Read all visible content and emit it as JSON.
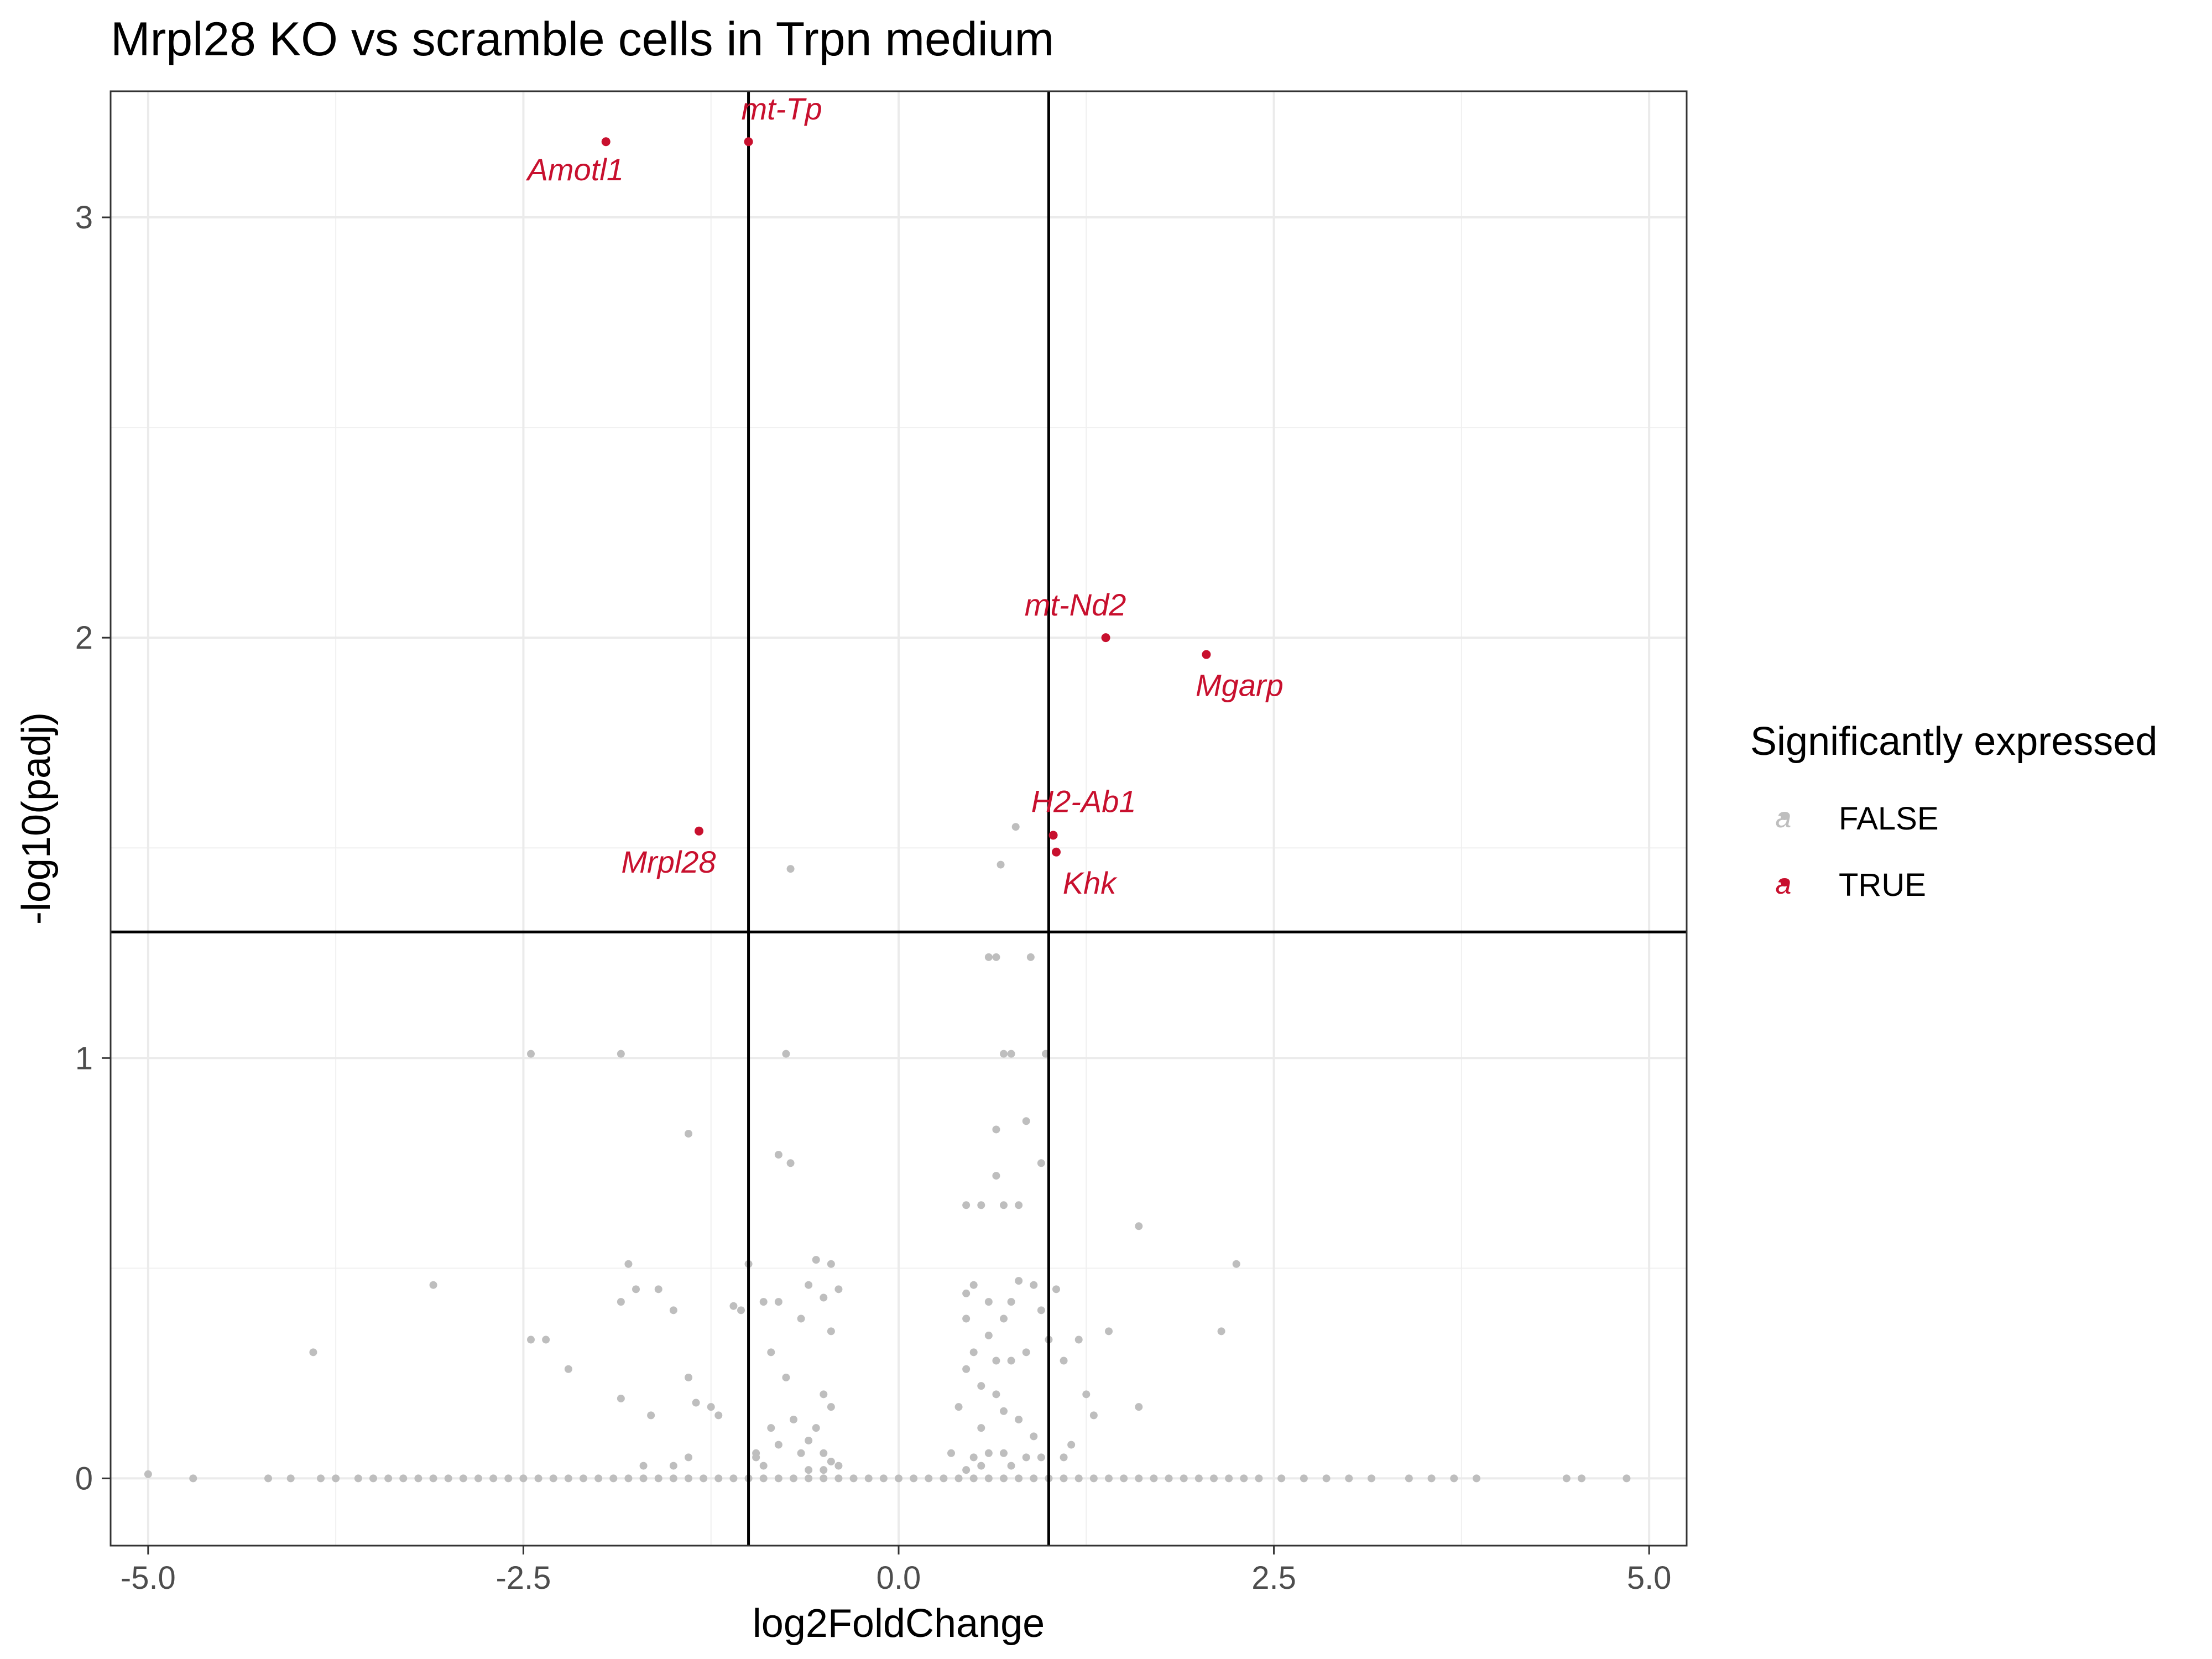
{
  "chart_data": {
    "type": "scatter",
    "title": "Mrpl28 KO vs scramble cells in Trpn medium",
    "xlabel": "log2FoldChange",
    "ylabel": "-log10(padj)",
    "xlim": [
      -5.25,
      5.25
    ],
    "ylim": [
      -0.16,
      3.3
    ],
    "x_ticks": [
      -5.0,
      -2.5,
      0.0,
      2.5,
      5.0
    ],
    "x_tick_labels": [
      "-5.0",
      "-2.5",
      "0.0",
      "2.5",
      "5.0"
    ],
    "y_ticks": [
      0,
      1,
      2,
      3
    ],
    "y_tick_labels": [
      "0",
      "1",
      "2",
      "3"
    ],
    "grid": true,
    "reference_lines": {
      "vertical": [
        -1,
        1
      ],
      "horizontal": [
        1.3
      ]
    },
    "legend": {
      "title": "Significantly expressed",
      "position": "right",
      "entries": [
        {
          "label": "FALSE",
          "color": "#bebebe"
        },
        {
          "label": "TRUE",
          "color": "#c8102e"
        }
      ]
    },
    "colors": {
      "not_significant": "#bebebe",
      "significant": "#c8102e",
      "ref_line": "#000000"
    },
    "series": [
      {
        "name": "FALSE",
        "points": [
          [
            -5.0,
            0.01
          ],
          [
            -4.7,
            0.0
          ],
          [
            -4.2,
            0.0
          ],
          [
            -4.05,
            0.0
          ],
          [
            -3.85,
            0.0
          ],
          [
            -3.75,
            0.0
          ],
          [
            -3.6,
            0.0
          ],
          [
            -3.5,
            0.0
          ],
          [
            -3.4,
            0.0
          ],
          [
            -3.3,
            0.0
          ],
          [
            -3.2,
            0.0
          ],
          [
            -3.1,
            0.0
          ],
          [
            -3.0,
            0.0
          ],
          [
            -2.9,
            0.0
          ],
          [
            -2.8,
            0.0
          ],
          [
            -2.7,
            0.0
          ],
          [
            -2.6,
            0.0
          ],
          [
            -2.5,
            0.0
          ],
          [
            -2.4,
            0.0
          ],
          [
            -2.3,
            0.0
          ],
          [
            -2.2,
            0.0
          ],
          [
            -2.1,
            0.0
          ],
          [
            -2.0,
            0.0
          ],
          [
            -1.9,
            0.0
          ],
          [
            -1.8,
            0.0
          ],
          [
            -1.7,
            0.0
          ],
          [
            -1.6,
            0.0
          ],
          [
            -1.5,
            0.0
          ],
          [
            -1.4,
            0.0
          ],
          [
            -1.3,
            0.0
          ],
          [
            -1.2,
            0.0
          ],
          [
            -1.1,
            0.0
          ],
          [
            -1.0,
            0.0
          ],
          [
            -0.9,
            0.0
          ],
          [
            -0.8,
            0.0
          ],
          [
            -0.7,
            0.0
          ],
          [
            -0.6,
            0.0
          ],
          [
            -0.5,
            0.0
          ],
          [
            -0.4,
            0.0
          ],
          [
            -0.3,
            0.0
          ],
          [
            -0.2,
            0.0
          ],
          [
            -0.1,
            0.0
          ],
          [
            0.0,
            0.0
          ],
          [
            0.1,
            0.0
          ],
          [
            0.2,
            0.0
          ],
          [
            0.3,
            0.0
          ],
          [
            0.4,
            0.0
          ],
          [
            0.5,
            0.0
          ],
          [
            0.6,
            0.0
          ],
          [
            0.7,
            0.0
          ],
          [
            0.8,
            0.0
          ],
          [
            0.9,
            0.0
          ],
          [
            1.0,
            0.0
          ],
          [
            1.1,
            0.0
          ],
          [
            1.2,
            0.0
          ],
          [
            1.3,
            0.0
          ],
          [
            1.4,
            0.0
          ],
          [
            1.5,
            0.0
          ],
          [
            1.6,
            0.0
          ],
          [
            1.7,
            0.0
          ],
          [
            1.8,
            0.0
          ],
          [
            1.9,
            0.0
          ],
          [
            2.0,
            0.0
          ],
          [
            2.1,
            0.0
          ],
          [
            2.2,
            0.0
          ],
          [
            2.3,
            0.0
          ],
          [
            2.4,
            0.0
          ],
          [
            2.55,
            0.0
          ],
          [
            2.7,
            0.0
          ],
          [
            2.85,
            0.0
          ],
          [
            3.0,
            0.0
          ],
          [
            3.15,
            0.0
          ],
          [
            3.4,
            0.0
          ],
          [
            3.55,
            0.0
          ],
          [
            3.7,
            0.0
          ],
          [
            3.85,
            0.0
          ],
          [
            4.45,
            0.0
          ],
          [
            4.55,
            0.0
          ],
          [
            4.85,
            0.0
          ],
          [
            -3.9,
            0.3
          ],
          [
            -3.1,
            0.46
          ],
          [
            -2.45,
            0.33
          ],
          [
            -2.35,
            0.33
          ],
          [
            -2.2,
            0.26
          ],
          [
            -1.85,
            0.42
          ],
          [
            -1.8,
            0.51
          ],
          [
            -1.75,
            0.45
          ],
          [
            -1.6,
            0.45
          ],
          [
            -1.5,
            0.4
          ],
          [
            -1.4,
            0.24
          ],
          [
            -1.35,
            0.18
          ],
          [
            -1.65,
            0.15
          ],
          [
            -1.85,
            0.19
          ],
          [
            -1.25,
            0.17
          ],
          [
            -1.2,
            0.15
          ],
          [
            -1.1,
            0.41
          ],
          [
            -1.0,
            0.51
          ],
          [
            -1.05,
            0.4
          ],
          [
            -0.95,
            0.06
          ],
          [
            -0.9,
            0.42
          ],
          [
            -0.85,
            0.3
          ],
          [
            -0.8,
            0.42
          ],
          [
            -0.75,
            0.24
          ],
          [
            -0.65,
            0.38
          ],
          [
            -0.6,
            0.46
          ],
          [
            -0.55,
            0.52
          ],
          [
            -0.45,
            0.51
          ],
          [
            -0.5,
            0.43
          ],
          [
            -0.45,
            0.35
          ],
          [
            -0.4,
            0.45
          ],
          [
            -0.5,
            0.2
          ],
          [
            -0.45,
            0.17
          ],
          [
            -0.55,
            0.12
          ],
          [
            -0.7,
            0.14
          ],
          [
            -0.6,
            0.09
          ],
          [
            -0.5,
            0.06
          ],
          [
            -0.45,
            0.04
          ],
          [
            -0.65,
            0.06
          ],
          [
            -0.8,
            0.08
          ],
          [
            -0.85,
            0.12
          ],
          [
            -0.4,
            0.03
          ],
          [
            -0.5,
            0.02
          ],
          [
            -0.6,
            0.02
          ],
          [
            -0.9,
            0.03
          ],
          [
            -0.95,
            0.05
          ],
          [
            -1.5,
            0.03
          ],
          [
            -1.7,
            0.03
          ],
          [
            -1.4,
            0.05
          ],
          [
            -2.45,
            1.01
          ],
          [
            -1.85,
            1.01
          ],
          [
            -0.75,
            1.01
          ],
          [
            -1.4,
            0.82
          ],
          [
            -0.8,
            0.77
          ],
          [
            -0.72,
            0.75
          ],
          [
            -0.72,
            1.45
          ],
          [
            0.35,
            0.06
          ],
          [
            0.4,
            0.17
          ],
          [
            0.45,
            0.26
          ],
          [
            0.45,
            0.38
          ],
          [
            0.45,
            0.44
          ],
          [
            0.5,
            0.46
          ],
          [
            0.5,
            0.3
          ],
          [
            0.55,
            0.22
          ],
          [
            0.55,
            0.12
          ],
          [
            0.6,
            0.34
          ],
          [
            0.6,
            0.42
          ],
          [
            0.65,
            0.28
          ],
          [
            0.65,
            0.2
          ],
          [
            0.7,
            0.38
          ],
          [
            0.7,
            0.16
          ],
          [
            0.75,
            0.28
          ],
          [
            0.75,
            0.42
          ],
          [
            0.8,
            0.14
          ],
          [
            0.8,
            0.47
          ],
          [
            0.85,
            0.3
          ],
          [
            0.9,
            0.46
          ],
          [
            0.9,
            0.1
          ],
          [
            0.95,
            0.4
          ],
          [
            1.0,
            0.33
          ],
          [
            1.05,
            0.45
          ],
          [
            1.1,
            0.28
          ],
          [
            1.2,
            0.33
          ],
          [
            1.25,
            0.2
          ],
          [
            1.3,
            0.15
          ],
          [
            1.4,
            0.35
          ],
          [
            1.6,
            0.17
          ],
          [
            0.5,
            0.05
          ],
          [
            0.6,
            0.06
          ],
          [
            0.7,
            0.06
          ],
          [
            0.85,
            0.05
          ],
          [
            0.95,
            0.05
          ],
          [
            1.1,
            0.05
          ],
          [
            0.45,
            0.02
          ],
          [
            0.55,
            0.03
          ],
          [
            0.75,
            0.03
          ],
          [
            1.15,
            0.08
          ],
          [
            0.45,
            0.65
          ],
          [
            0.55,
            0.65
          ],
          [
            0.65,
            0.72
          ],
          [
            0.7,
            0.65
          ],
          [
            0.8,
            0.65
          ],
          [
            0.65,
            0.83
          ],
          [
            0.85,
            0.85
          ],
          [
            0.95,
            0.75
          ],
          [
            1.6,
            0.6
          ],
          [
            2.25,
            0.51
          ],
          [
            2.15,
            0.35
          ],
          [
            0.7,
            1.01
          ],
          [
            0.75,
            1.01
          ],
          [
            0.6,
            1.24
          ],
          [
            0.65,
            1.24
          ],
          [
            0.88,
            1.24
          ],
          [
            0.98,
            1.01
          ],
          [
            0.68,
            1.46
          ],
          [
            0.78,
            1.55
          ]
        ]
      },
      {
        "name": "TRUE",
        "points": [
          {
            "x": -1.95,
            "y": 3.18,
            "label": "Amotl1"
          },
          {
            "x": -1.0,
            "y": 3.18,
            "label": "mt-Tp"
          },
          {
            "x": 1.38,
            "y": 2.0,
            "label": "mt-Nd2"
          },
          {
            "x": 2.05,
            "y": 1.96,
            "label": "Mgarp"
          },
          {
            "x": -1.33,
            "y": 1.54,
            "label": "Mrpl28"
          },
          {
            "x": 1.03,
            "y": 1.53,
            "label": "H2-Ab1"
          },
          {
            "x": 1.05,
            "y": 1.49,
            "label": "Khk"
          }
        ]
      }
    ]
  }
}
